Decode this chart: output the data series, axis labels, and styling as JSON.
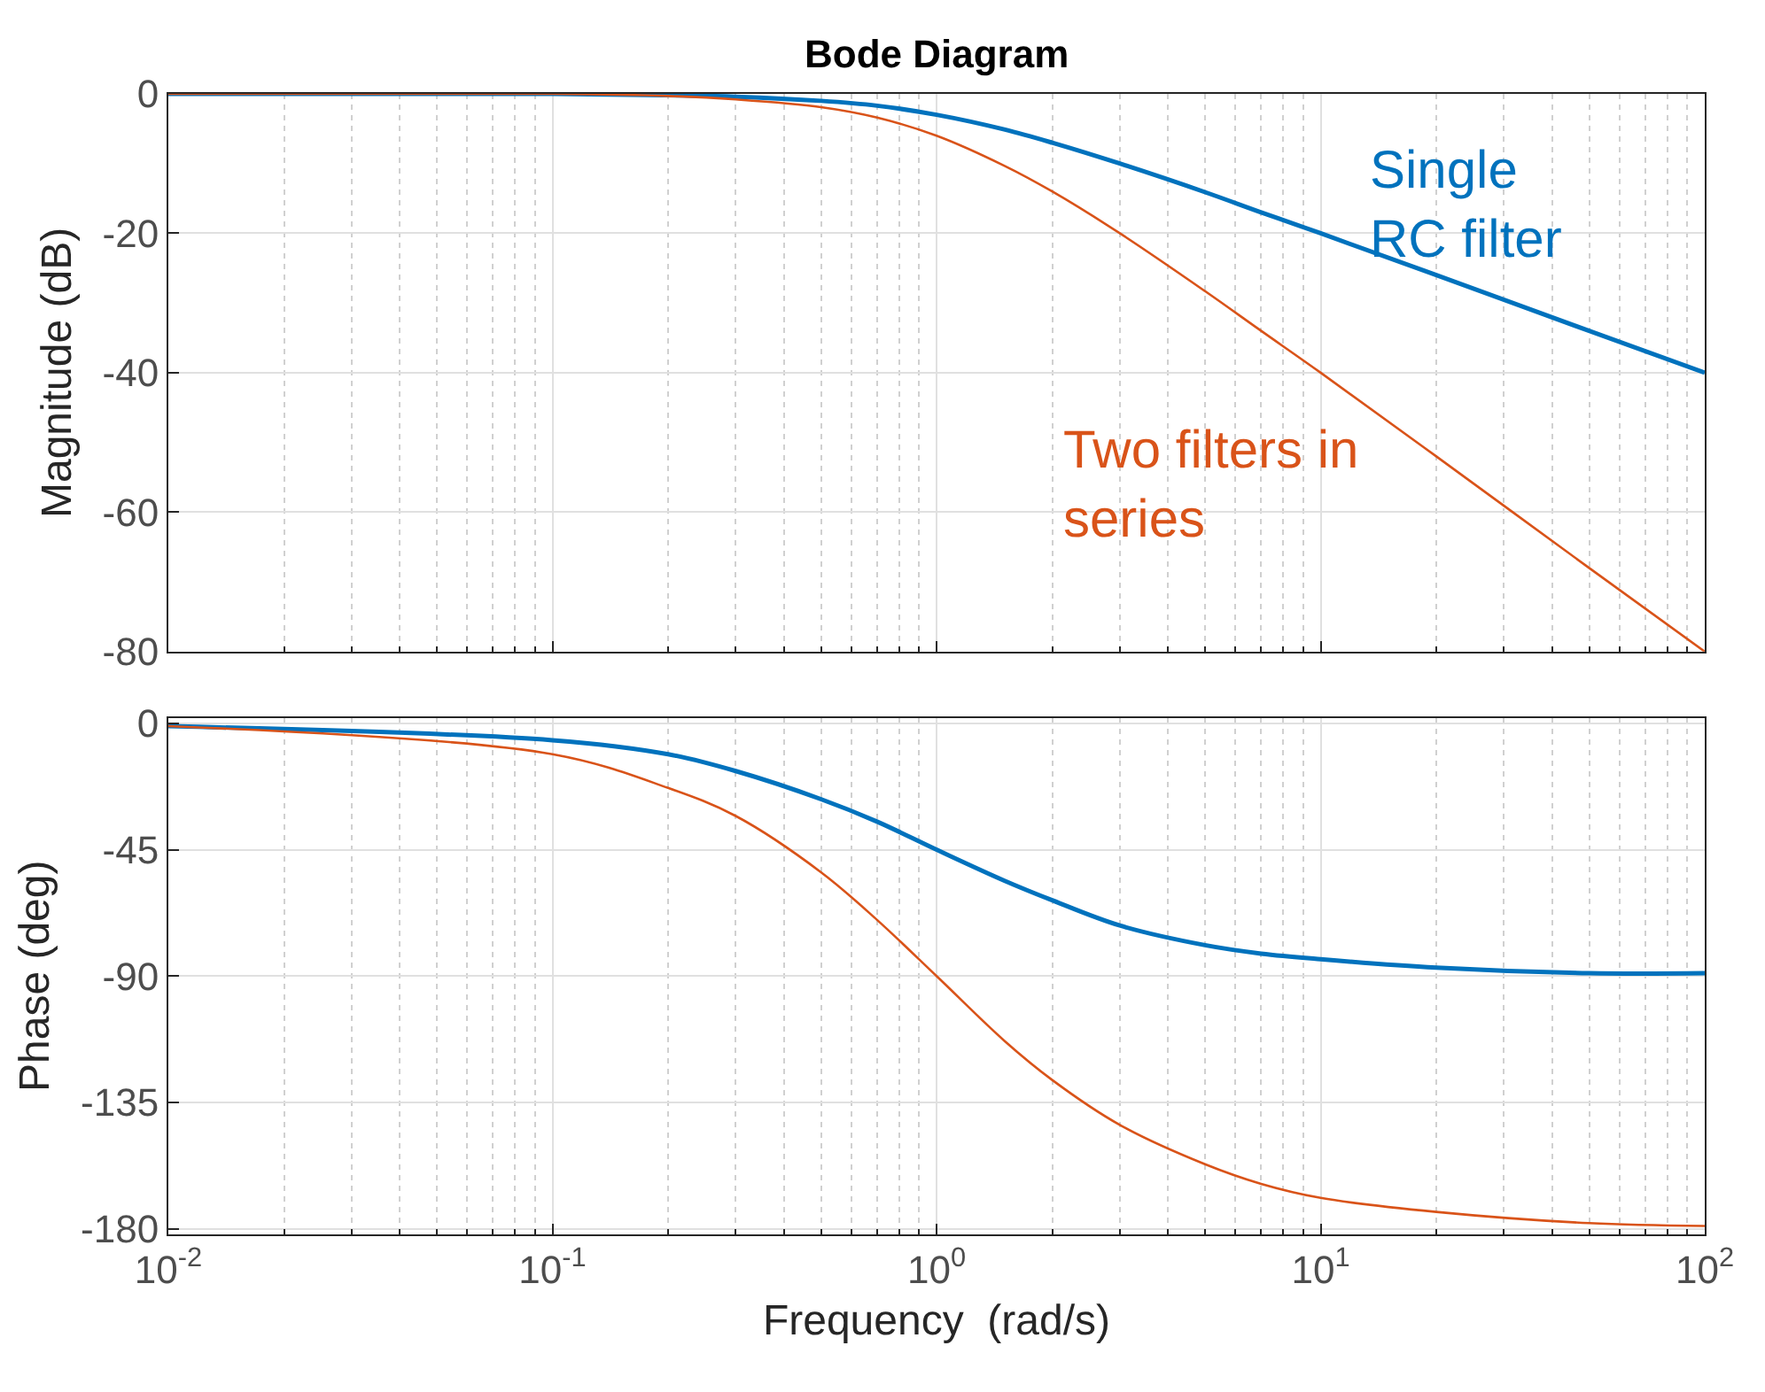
{
  "chart_data": [
    {
      "type": "line",
      "title": "Bode Diagram",
      "ylabel": "Magnitude (dB)",
      "log": "x",
      "grid": true,
      "tick_labels": "y",
      "x": [
        0.01,
        0.1,
        0.2,
        0.3,
        0.5,
        0.7,
        1,
        1.5,
        2,
        3,
        5,
        7,
        10,
        20,
        50,
        100
      ],
      "xlim": [
        0.01,
        100
      ],
      "xticks": [
        {
          "value": 0.01,
          "label": "10$^{-2}$"
        },
        {
          "value": 0.1,
          "label": "10$^{-1}$"
        },
        {
          "value": 1,
          "label": "10$^{0}$"
        },
        {
          "value": 10,
          "label": "10$^{1}$"
        },
        {
          "value": 100,
          "label": "10$^{2}$"
        }
      ],
      "ylim": [
        -80,
        0
      ],
      "yticks": [
        -80,
        -60,
        -40,
        -20,
        0
      ],
      "series": [
        {
          "name": "Single\nRC filter",
          "color": "#0072bd",
          "values": [
            0,
            0,
            -0.2,
            -0.4,
            -1,
            -1.7,
            -3,
            -5.1,
            -7,
            -10,
            -14.1,
            -17,
            -20,
            -26,
            -34,
            -40
          ]
        },
        {
          "name": "Two filters in\nseries",
          "color": "#d95319",
          "values": [
            0,
            0,
            -0.3,
            -0.8,
            -1.9,
            -3.4,
            -6,
            -10.3,
            -14,
            -20,
            -28.3,
            -34,
            -40,
            -52,
            -68,
            -80
          ]
        }
      ]
    },
    {
      "type": "line",
      "xlabel": "Frequency  (rad/s)",
      "ylabel": "Phase (deg)",
      "log": "x",
      "grid": true,
      "x": [
        0.01,
        0.1,
        0.2,
        0.3,
        0.5,
        0.7,
        1,
        1.5,
        2,
        3,
        5,
        7,
        10,
        20,
        50,
        100
      ],
      "xlim": [
        0.01,
        100
      ],
      "xticks": [
        {
          "value": 0.01,
          "label": "10$^{-2}$"
        },
        {
          "value": 0.1,
          "label": "10$^{-1}$"
        },
        {
          "value": 1,
          "label": "10$^{0}$"
        },
        {
          "value": 10,
          "label": "10$^{1}$"
        },
        {
          "value": 100,
          "label": "10$^{2}$"
        }
      ],
      "ylim": [
        -182,
        2
      ],
      "yticks": [
        -180,
        -135,
        -90,
        -45,
        0
      ],
      "series": [
        {
          "color": "#0072bd",
          "values": [
            -1,
            -6,
            -11,
            -17,
            -27,
            -35,
            -45,
            -56,
            -63,
            -72,
            -79,
            -82,
            -84,
            -87,
            -89,
            -89
          ]
        },
        {
          "color": "#d95319",
          "values": [
            -1,
            -11,
            -23,
            -33,
            -53,
            -70,
            -90,
            -113,
            -127,
            -143,
            -157,
            -164,
            -169,
            -174,
            -178,
            -179
          ]
        }
      ]
    }
  ]
}
